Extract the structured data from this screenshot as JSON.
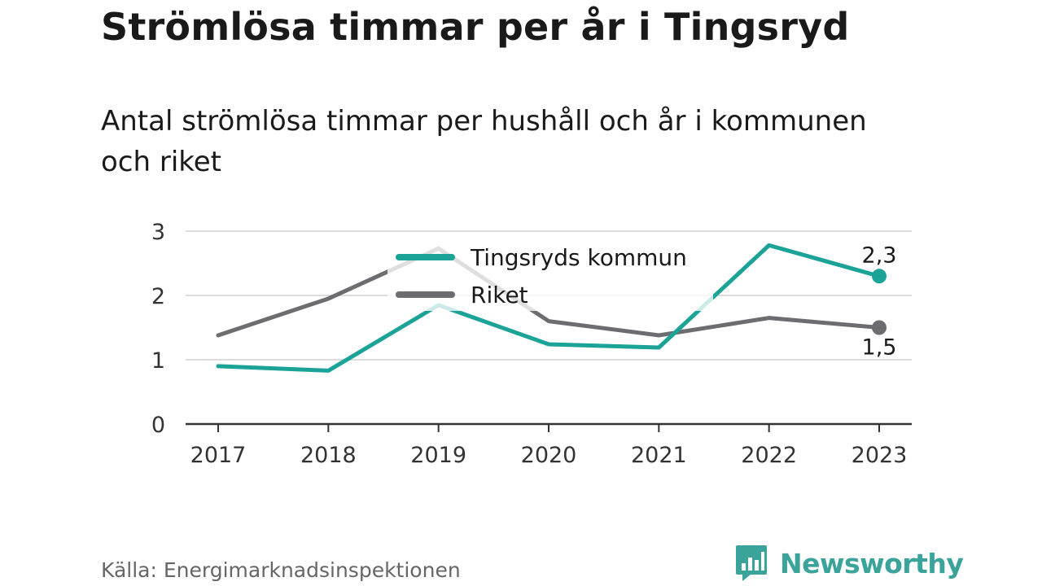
{
  "header": {
    "title": "Strömlösa timmar per år i Tingsryd",
    "subtitle": "Antal strömlösa timmar per hushåll och år i kommunen och riket"
  },
  "footer": {
    "source": "Källa: Energimarknadsinspektionen",
    "brand": "Newsworthy",
    "brand_icon": "bar-chart-speech-bubble-icon",
    "brand_color": "#3aa39a"
  },
  "chart_data": {
    "type": "line",
    "title": "Strömlösa timmar per år i Tingsryd",
    "subtitle": "Antal strömlösa timmar per hushåll och år i kommunen och riket",
    "x": [
      "2017",
      "2018",
      "2019",
      "2020",
      "2021",
      "2022",
      "2023"
    ],
    "yticks": [
      "0",
      "1",
      "2",
      "3"
    ],
    "ylim": [
      0,
      3
    ],
    "grid": true,
    "legend_position": "top-center",
    "series": [
      {
        "name": "Tingsryds kommun",
        "color": "#1aa396",
        "values": [
          0.9,
          0.83,
          1.85,
          1.24,
          1.19,
          2.78,
          2.3
        ],
        "end_label": "2,3"
      },
      {
        "name": "Riket",
        "color": "#6d6c71",
        "values": [
          1.38,
          1.95,
          2.73,
          1.6,
          1.38,
          1.65,
          1.5
        ],
        "end_label": "1,5"
      }
    ]
  }
}
